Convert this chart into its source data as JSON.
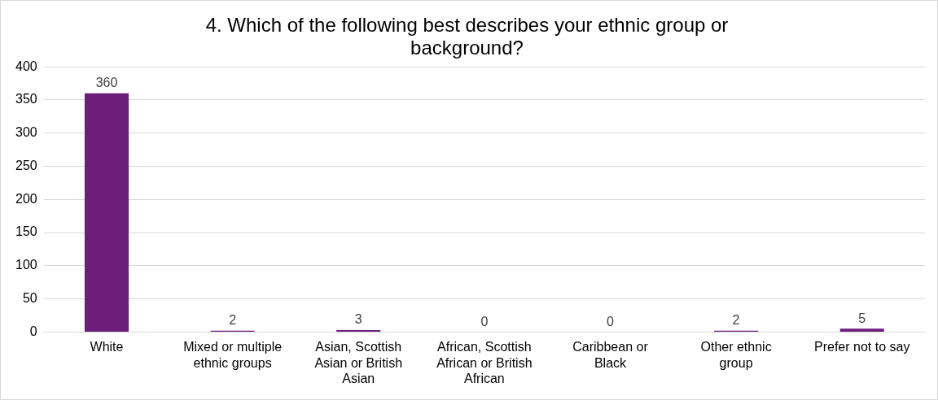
{
  "chart_data": {
    "type": "bar",
    "title": "4. Which of the following best describes your ethnic group or background?",
    "categories": [
      "White",
      "Mixed or multiple ethnic groups",
      "Asian, Scottish Asian or British Asian",
      "African, Scottish African or British African",
      "Caribbean or Black",
      "Other ethnic group",
      "Prefer not to say"
    ],
    "values": [
      360,
      2,
      3,
      0,
      0,
      2,
      5
    ],
    "color": "#6b1f7b",
    "ylim": [
      0,
      400
    ],
    "yticks": [
      0,
      50,
      100,
      150,
      200,
      250,
      300,
      350,
      400
    ],
    "grid": "y",
    "data_labels": true
  }
}
